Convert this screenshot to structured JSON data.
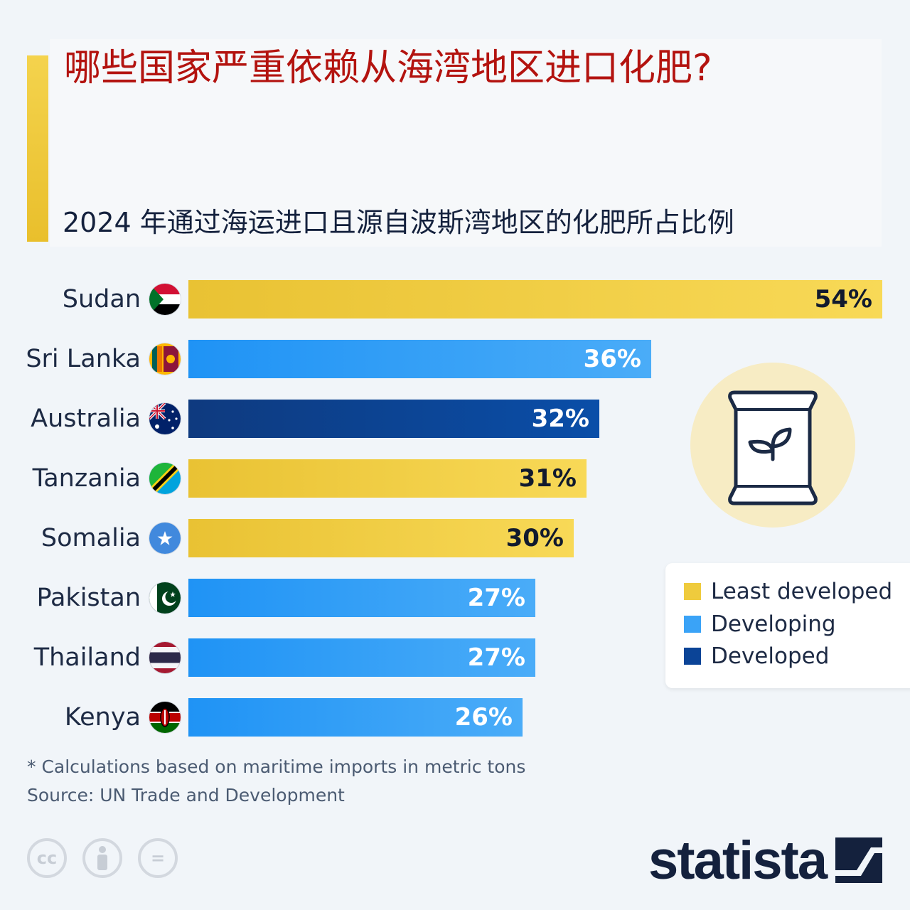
{
  "title": "哪些国家严重依赖从海湾地区进口化肥?",
  "subtitle": "2024 年通过海运进口且源自波斯湾地区的化肥所占比例",
  "chart_data": {
    "type": "bar",
    "orientation": "horizontal",
    "categories": [
      "Sudan",
      "Sri Lanka",
      "Australia",
      "Tanzania",
      "Somalia",
      "Pakistan",
      "Thailand",
      "Kenya"
    ],
    "values": [
      54,
      36,
      32,
      31,
      30,
      27,
      27,
      26
    ],
    "value_labels": [
      "54%",
      "36%",
      "32%",
      "31%",
      "30%",
      "27%",
      "27%",
      "26%"
    ],
    "groups": [
      "least",
      "developing",
      "developed",
      "least",
      "least",
      "developing",
      "developing",
      "developing"
    ],
    "xlim": [
      0,
      54
    ],
    "unit": "%",
    "legend": [
      {
        "key": "least",
        "label": "Least developed",
        "color": "#efcb3d"
      },
      {
        "key": "developing",
        "label": "Developing",
        "color": "#3aa3f7"
      },
      {
        "key": "developed",
        "label": "Developed",
        "color": "#0b4497"
      }
    ],
    "legend_position": "right"
  },
  "flags": [
    "sudan-flag-icon",
    "sri-lanka-flag-icon",
    "australia-flag-icon",
    "tanzania-flag-icon",
    "somalia-flag-icon",
    "pakistan-flag-icon",
    "thailand-flag-icon",
    "kenya-flag-icon"
  ],
  "illustration": "fertilizer-bag-icon",
  "footnote": "* Calculations based on maritime imports in metric tons",
  "source": "Source: UN Trade and Development",
  "license_icons": [
    "cc",
    "by",
    "nd"
  ],
  "license_marks": {
    "cc": "cc",
    "nd": "="
  },
  "brand": "statista",
  "colors": {
    "title": "#b3130f",
    "accent": "#efcb3d",
    "text": "#1d2a44"
  }
}
